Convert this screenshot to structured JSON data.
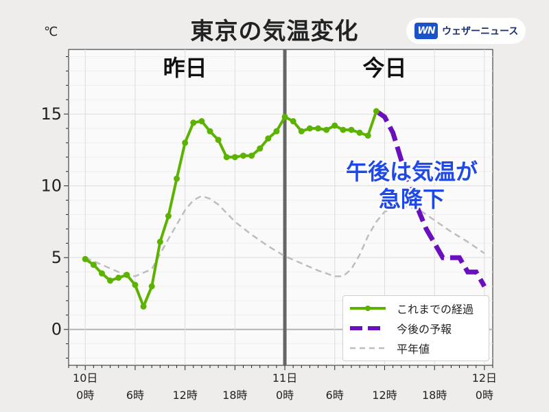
{
  "title": "東京の気温変化",
  "unit": "℃",
  "logo": {
    "mark": "WN",
    "text": "ウェザーニュース"
  },
  "colors": {
    "observed": "#5bb300",
    "forecast": "#6a0fbe",
    "normal": "#bdbdbd",
    "annotation": "#1f49e6"
  },
  "annotation": [
    "午後は気温が",
    "急降下"
  ],
  "chart_data": {
    "type": "line",
    "title": "東京の気温変化",
    "ylabel": "℃",
    "ylim": [
      -2.5,
      19.5
    ],
    "xlim": [
      -2,
      49
    ],
    "yticks": [
      0,
      5,
      10,
      15
    ],
    "day_labels": [
      {
        "x": 0,
        "label": "昨日"
      },
      {
        "x": 24,
        "label": "今日"
      }
    ],
    "xticks": [
      {
        "x": 0,
        "label": "10日\n0時"
      },
      {
        "x": 6,
        "label": "6時"
      },
      {
        "x": 12,
        "label": "12時"
      },
      {
        "x": 18,
        "label": "18時"
      },
      {
        "x": 24,
        "label": "11日\n0時"
      },
      {
        "x": 30,
        "label": "6時"
      },
      {
        "x": 36,
        "label": "12時"
      },
      {
        "x": 42,
        "label": "18時"
      },
      {
        "x": 48,
        "label": "12日\n0時"
      }
    ],
    "grid": true,
    "legend_position": "bottom-right",
    "series": [
      {
        "name": "これまでの経過",
        "style": "line-markers",
        "x": [
          0,
          1,
          2,
          3,
          4,
          5,
          6,
          7,
          8,
          9,
          10,
          11,
          12,
          13,
          14,
          15,
          16,
          17,
          18,
          19,
          20,
          21,
          22,
          23,
          24,
          25,
          26,
          27,
          28,
          29,
          30,
          31,
          32,
          33,
          34,
          35
        ],
        "y": [
          4.9,
          4.5,
          3.9,
          3.4,
          3.6,
          3.8,
          3.1,
          1.6,
          3.0,
          6.1,
          7.9,
          10.5,
          13.0,
          14.4,
          14.5,
          13.8,
          13.2,
          12.0,
          12.0,
          12.1,
          12.1,
          12.6,
          13.3,
          13.8,
          14.8,
          14.5,
          13.8,
          14.0,
          14.0,
          13.9,
          14.2,
          13.9,
          13.9,
          13.7,
          13.5,
          15.2
        ]
      },
      {
        "name": "今後の予報",
        "style": "dashed-thick",
        "x": [
          35,
          36,
          37,
          38,
          39,
          40,
          41,
          42,
          43,
          44,
          45,
          46,
          47,
          48
        ],
        "y": [
          15.2,
          14.8,
          13.7,
          11.8,
          10.2,
          8.4,
          7.0,
          6.0,
          5.0,
          5.0,
          5.0,
          4.0,
          4.0,
          3.0
        ]
      },
      {
        "name": "平年値",
        "style": "dashed-thin",
        "x": [
          0,
          2,
          4,
          6,
          8,
          10,
          12,
          13,
          14,
          15,
          16,
          18,
          20,
          22,
          24,
          26,
          28,
          30,
          31,
          32,
          33,
          34,
          35,
          36,
          38,
          40,
          42,
          44,
          46,
          48
        ],
        "y": [
          5.0,
          4.5,
          4.0,
          3.7,
          4.2,
          6.3,
          8.3,
          9.0,
          9.3,
          9.1,
          8.7,
          7.5,
          6.6,
          5.8,
          5.1,
          4.6,
          4.1,
          3.7,
          3.7,
          4.2,
          5.2,
          6.5,
          7.5,
          8.2,
          8.6,
          8.4,
          7.6,
          6.8,
          6.1,
          5.3
        ]
      }
    ]
  }
}
